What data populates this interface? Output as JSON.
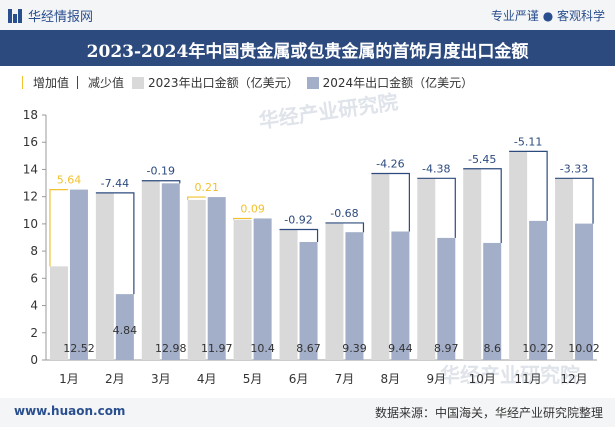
{
  "header": {
    "brand": "华经情报网",
    "slogan": "专业严谨 ● 客观科学"
  },
  "footer": {
    "site": "www.huaon.com",
    "source": "数据来源：中国海关，华经产业研究院整理"
  },
  "colors": {
    "bar2023": "#d9d9d9",
    "bar2024": "#a3aec8",
    "increase": "#f2c12e",
    "decrease": "#2c4a7e",
    "header_bg": "#2c4a7e"
  },
  "chart_data": {
    "type": "bar",
    "title": "2023-2024年中国贵金属或包贵金属的首饰月度出口金额",
    "legend": [
      "增加值",
      "减少值",
      "2023年出口金额（亿美元）",
      "2024年出口金额（亿美元）"
    ],
    "legend_position": "top-left",
    "categories": [
      "1月",
      "2月",
      "3月",
      "4月",
      "5月",
      "6月",
      "7月",
      "8月",
      "9月",
      "10月",
      "11月",
      "12月"
    ],
    "series": [
      {
        "name": "2023年出口金额（亿美元）",
        "values": [
          6.88,
          12.28,
          13.17,
          11.76,
          10.31,
          9.59,
          10.07,
          13.7,
          13.35,
          14.05,
          15.33,
          13.35
        ]
      },
      {
        "name": "2024年出口金额（亿美元）",
        "values": [
          12.52,
          4.84,
          12.98,
          11.97,
          10.4,
          8.67,
          9.39,
          9.44,
          8.97,
          8.6,
          10.22,
          10.02
        ]
      }
    ],
    "change_labels": [
      "5.64",
      "-7.44",
      "-0.19",
      "0.21",
      "0.09",
      "-0.92",
      "-0.68",
      "-4.26",
      "-4.38",
      "-5.45",
      "-5.11",
      "-3.33"
    ],
    "value_labels": [
      "12.52",
      "4.84",
      "12.98",
      "11.97",
      "10.4",
      "8.67",
      "9.39",
      "9.44",
      "8.97",
      "8.6",
      "10.22",
      "10.02"
    ],
    "yticks": [
      "0",
      "2",
      "4",
      "6",
      "8",
      "10",
      "12",
      "14",
      "16",
      "18"
    ],
    "ylim": [
      0,
      18
    ],
    "grid": false,
    "watermark": "华经产业研究院"
  }
}
